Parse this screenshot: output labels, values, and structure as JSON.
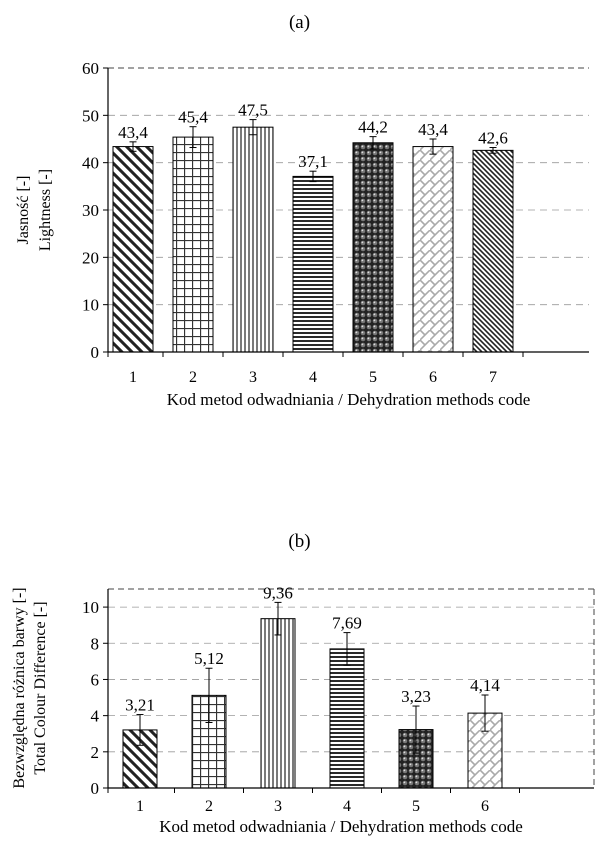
{
  "chart_data": [
    {
      "type": "bar",
      "panel_label": "(a)",
      "categories": [
        "1",
        "2",
        "3",
        "4",
        "5",
        "6",
        "7"
      ],
      "values": [
        43.4,
        45.4,
        47.5,
        37.1,
        44.2,
        43.4,
        42.6
      ],
      "value_labels": [
        "43,4",
        "45,4",
        "47,5",
        "37,1",
        "44,2",
        "43,4",
        "42,6"
      ],
      "error_bars": [
        1.0,
        2.2,
        1.6,
        1.1,
        1.3,
        1.6,
        0.6
      ],
      "patterns": [
        "diag-down",
        "grid",
        "vertical",
        "horizontal",
        "dots",
        "lattice",
        "diag-fine"
      ],
      "xlabel": "Kod metod odwadniania / Dehydration methods code",
      "ylabel_lines": [
        "Jasność [-]",
        "Lightness [-]"
      ],
      "ylim": [
        0,
        60
      ],
      "yticks": [
        "0",
        "10",
        "20",
        "30",
        "40",
        "50",
        "60"
      ],
      "grid": true
    },
    {
      "type": "bar",
      "panel_label": "(b)",
      "categories": [
        "1",
        "2",
        "3",
        "4",
        "5",
        "6"
      ],
      "values": [
        3.21,
        5.12,
        9.36,
        7.69,
        3.23,
        4.14
      ],
      "value_labels": [
        "3,21",
        "5,12",
        "9,36",
        "7,69",
        "3,23",
        "4,14"
      ],
      "error_bars": [
        0.85,
        1.5,
        0.9,
        0.9,
        1.3,
        1.0
      ],
      "patterns": [
        "diag-down",
        "grid",
        "vertical",
        "horizontal",
        "dots",
        "lattice"
      ],
      "xlabel": "Kod metod odwadniania / Dehydration methods code",
      "ylabel_lines": [
        "Bezwzględna różnica barwy [-]",
        "Total Colour Difference [-]"
      ],
      "ylim": [
        0,
        11
      ],
      "yticks": [
        "0",
        "2",
        "4",
        "6",
        "8",
        "10"
      ],
      "grid": true
    }
  ]
}
